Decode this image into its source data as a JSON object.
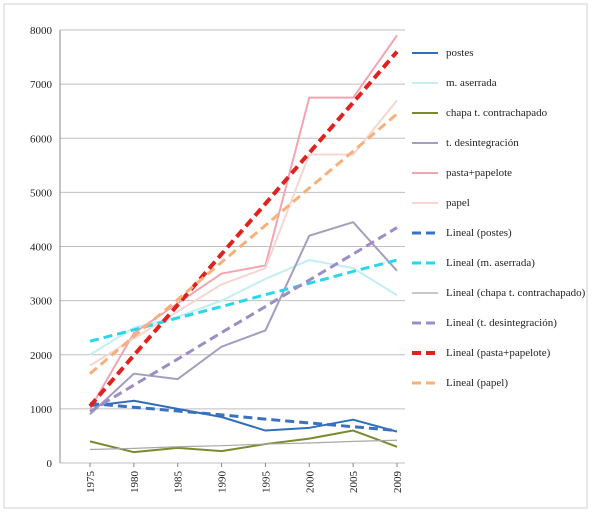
{
  "chart_data": {
    "type": "line",
    "categories": [
      "1975",
      "1980",
      "1985",
      "1990",
      "1995",
      "2000",
      "2005",
      "2009"
    ],
    "ylim": [
      0,
      8000
    ],
    "yticks": [
      0,
      1000,
      2000,
      3000,
      4000,
      5000,
      6000,
      7000,
      8000
    ],
    "grid": true,
    "series": [
      {
        "name": "postes",
        "color": "#2e6fbd",
        "line_style": "solid",
        "values": [
          1050,
          1150,
          1000,
          850,
          600,
          650,
          800,
          580
        ]
      },
      {
        "name": "m. aserrada",
        "color": "#c3eef3",
        "line_style": "solid",
        "values": [
          2000,
          2500,
          2700,
          3000,
          3400,
          3750,
          3600,
          3100
        ]
      },
      {
        "name": "chapa t. contrachapado",
        "color": "#7a8a2e",
        "line_style": "solid",
        "values": [
          400,
          200,
          280,
          220,
          350,
          450,
          600,
          300
        ]
      },
      {
        "name": "t. desintegración",
        "color": "#a59dbf",
        "line_style": "solid",
        "values": [
          900,
          1650,
          1550,
          2150,
          2450,
          4200,
          4450,
          3550
        ]
      },
      {
        "name": "pasta+papelote",
        "color": "#f4a3b3",
        "line_style": "solid",
        "values": [
          1000,
          2400,
          2950,
          3500,
          3650,
          6750,
          6750,
          7900
        ]
      },
      {
        "name": "papel",
        "color": "#f6d6d0",
        "line_style": "solid",
        "values": [
          1800,
          2300,
          2800,
          3300,
          3600,
          5700,
          5700,
          6700
        ]
      },
      {
        "name": "Lineal (postes)",
        "color": "#3a72c0",
        "line_style": "dashed",
        "values": [
          1100,
          1030,
          960,
          890,
          810,
          740,
          670,
          600
        ]
      },
      {
        "name": "Lineal (m. aserrada)",
        "color": "#2ad6ea",
        "line_style": "dashed",
        "values": [
          2250,
          2460,
          2680,
          2890,
          3110,
          3320,
          3540,
          3750
        ]
      },
      {
        "name": "Lineal (chapa t. contrachapado)",
        "color": "#a8a8a8",
        "line_style": "solid",
        "values": [
          250,
          270,
          300,
          320,
          350,
          370,
          400,
          420
        ]
      },
      {
        "name": "Lineal (t. desintegración)",
        "color": "#9c8ec4",
        "line_style": "dashed",
        "values": [
          950,
          1440,
          1920,
          2410,
          2890,
          3380,
          3860,
          4350
        ]
      },
      {
        "name": "Lineal (pasta+papelote)",
        "color": "#e0211d",
        "line_style": "dashed",
        "values": [
          1050,
          1990,
          2920,
          3860,
          4790,
          5730,
          6660,
          7600
        ]
      },
      {
        "name": "Lineal (papel)",
        "color": "#f6b07a",
        "line_style": "dashed",
        "values": [
          1650,
          2340,
          3020,
          3710,
          4390,
          5080,
          5760,
          6450
        ]
      }
    ]
  }
}
